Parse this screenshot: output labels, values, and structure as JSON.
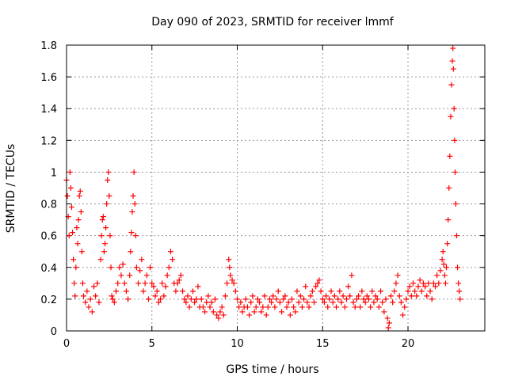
{
  "chart_data": {
    "type": "scatter",
    "title": "Day 090 of 2023, SRMTID for receiver lmmf",
    "xlabel": "GPS time / hours",
    "ylabel": "SRMTID / TECUs",
    "xlim": [
      0,
      24.5
    ],
    "ylim": [
      0,
      1.8
    ],
    "x_ticks": [
      0,
      5,
      10,
      15,
      20
    ],
    "x_tick_labels": [
      "0",
      "5",
      "10",
      "15",
      "20"
    ],
    "y_ticks": [
      0,
      0.2,
      0.4,
      0.6,
      0.8,
      1.0,
      1.2,
      1.4,
      1.6,
      1.8
    ],
    "y_tick_labels": [
      "0",
      "0.2",
      "0.4",
      "0.6",
      "0.8",
      "1",
      "1.2",
      "1.4",
      "1.6",
      "1.8"
    ],
    "grid": true,
    "marker": "+",
    "marker_color": "#ff0000",
    "series": [
      {
        "name": "SRMTID",
        "points": [
          [
            0.0,
            0.95
          ],
          [
            0.05,
            0.85
          ],
          [
            0.1,
            0.72
          ],
          [
            0.15,
            0.6
          ],
          [
            0.2,
            1.0
          ],
          [
            0.25,
            0.9
          ],
          [
            0.3,
            0.78
          ],
          [
            0.35,
            0.62
          ],
          [
            0.4,
            0.45
          ],
          [
            0.45,
            0.3
          ],
          [
            0.5,
            0.22
          ],
          [
            0.55,
            0.4
          ],
          [
            0.6,
            0.65
          ],
          [
            0.65,
            0.55
          ],
          [
            0.7,
            0.7
          ],
          [
            0.75,
            0.85
          ],
          [
            0.8,
            0.88
          ],
          [
            0.85,
            0.75
          ],
          [
            0.9,
            0.5
          ],
          [
            0.95,
            0.3
          ],
          [
            1.0,
            0.22
          ],
          [
            1.1,
            0.18
          ],
          [
            1.2,
            0.25
          ],
          [
            1.3,
            0.15
          ],
          [
            1.4,
            0.2
          ],
          [
            1.5,
            0.12
          ],
          [
            1.6,
            0.28
          ],
          [
            1.7,
            0.22
          ],
          [
            1.8,
            0.3
          ],
          [
            1.9,
            0.18
          ],
          [
            2.0,
            0.45
          ],
          [
            2.05,
            0.6
          ],
          [
            2.1,
            0.7
          ],
          [
            2.15,
            0.72
          ],
          [
            2.2,
            0.5
          ],
          [
            2.25,
            0.55
          ],
          [
            2.3,
            0.65
          ],
          [
            2.35,
            0.8
          ],
          [
            2.4,
            0.95
          ],
          [
            2.45,
            1.0
          ],
          [
            2.5,
            0.85
          ],
          [
            2.55,
            0.6
          ],
          [
            2.6,
            0.4
          ],
          [
            2.65,
            0.22
          ],
          [
            2.7,
            0.2
          ],
          [
            2.8,
            0.18
          ],
          [
            2.9,
            0.25
          ],
          [
            3.0,
            0.3
          ],
          [
            3.1,
            0.4
          ],
          [
            3.2,
            0.35
          ],
          [
            3.3,
            0.42
          ],
          [
            3.4,
            0.3
          ],
          [
            3.5,
            0.25
          ],
          [
            3.6,
            0.2
          ],
          [
            3.7,
            0.35
          ],
          [
            3.75,
            0.5
          ],
          [
            3.8,
            0.62
          ],
          [
            3.85,
            0.75
          ],
          [
            3.9,
            0.85
          ],
          [
            3.95,
            1.0
          ],
          [
            4.0,
            0.8
          ],
          [
            4.05,
            0.6
          ],
          [
            4.1,
            0.4
          ],
          [
            4.2,
            0.3
          ],
          [
            4.3,
            0.38
          ],
          [
            4.4,
            0.45
          ],
          [
            4.5,
            0.25
          ],
          [
            4.6,
            0.3
          ],
          [
            4.7,
            0.35
          ],
          [
            4.8,
            0.2
          ],
          [
            4.9,
            0.4
          ],
          [
            5.0,
            0.3
          ],
          [
            5.1,
            0.28
          ],
          [
            5.2,
            0.22
          ],
          [
            5.3,
            0.25
          ],
          [
            5.4,
            0.18
          ],
          [
            5.5,
            0.2
          ],
          [
            5.6,
            0.3
          ],
          [
            5.7,
            0.22
          ],
          [
            5.8,
            0.28
          ],
          [
            5.9,
            0.35
          ],
          [
            6.0,
            0.4
          ],
          [
            6.1,
            0.5
          ],
          [
            6.2,
            0.45
          ],
          [
            6.3,
            0.3
          ],
          [
            6.4,
            0.25
          ],
          [
            6.5,
            0.3
          ],
          [
            6.6,
            0.32
          ],
          [
            6.7,
            0.35
          ],
          [
            6.8,
            0.25
          ],
          [
            6.9,
            0.2
          ],
          [
            7.0,
            0.18
          ],
          [
            7.1,
            0.22
          ],
          [
            7.2,
            0.15
          ],
          [
            7.3,
            0.2
          ],
          [
            7.4,
            0.25
          ],
          [
            7.5,
            0.18
          ],
          [
            7.6,
            0.2
          ],
          [
            7.7,
            0.28
          ],
          [
            7.8,
            0.15
          ],
          [
            7.9,
            0.2
          ],
          [
            8.0,
            0.15
          ],
          [
            8.1,
            0.12
          ],
          [
            8.2,
            0.18
          ],
          [
            8.3,
            0.22
          ],
          [
            8.4,
            0.15
          ],
          [
            8.5,
            0.18
          ],
          [
            8.6,
            0.12
          ],
          [
            8.7,
            0.2
          ],
          [
            8.8,
            0.1
          ],
          [
            8.9,
            0.08
          ],
          [
            9.0,
            0.12
          ],
          [
            9.1,
            0.15
          ],
          [
            9.2,
            0.1
          ],
          [
            9.3,
            0.22
          ],
          [
            9.4,
            0.3
          ],
          [
            9.5,
            0.45
          ],
          [
            9.55,
            0.4
          ],
          [
            9.6,
            0.35
          ],
          [
            9.7,
            0.32
          ],
          [
            9.8,
            0.3
          ],
          [
            9.9,
            0.25
          ],
          [
            10.0,
            0.2
          ],
          [
            10.1,
            0.15
          ],
          [
            10.2,
            0.18
          ],
          [
            10.3,
            0.12
          ],
          [
            10.4,
            0.15
          ],
          [
            10.5,
            0.2
          ],
          [
            10.6,
            0.15
          ],
          [
            10.7,
            0.1
          ],
          [
            10.8,
            0.18
          ],
          [
            10.9,
            0.22
          ],
          [
            11.0,
            0.12
          ],
          [
            11.1,
            0.15
          ],
          [
            11.2,
            0.2
          ],
          [
            11.3,
            0.18
          ],
          [
            11.4,
            0.12
          ],
          [
            11.5,
            0.15
          ],
          [
            11.6,
            0.22
          ],
          [
            11.7,
            0.1
          ],
          [
            11.8,
            0.15
          ],
          [
            11.9,
            0.2
          ],
          [
            12.0,
            0.18
          ],
          [
            12.1,
            0.22
          ],
          [
            12.2,
            0.15
          ],
          [
            12.3,
            0.2
          ],
          [
            12.4,
            0.25
          ],
          [
            12.5,
            0.18
          ],
          [
            12.6,
            0.12
          ],
          [
            12.7,
            0.2
          ],
          [
            12.8,
            0.22
          ],
          [
            12.9,
            0.15
          ],
          [
            13.0,
            0.18
          ],
          [
            13.1,
            0.1
          ],
          [
            13.2,
            0.2
          ],
          [
            13.3,
            0.15
          ],
          [
            13.4,
            0.12
          ],
          [
            13.5,
            0.25
          ],
          [
            13.6,
            0.18
          ],
          [
            13.7,
            0.22
          ],
          [
            13.8,
            0.15
          ],
          [
            13.9,
            0.2
          ],
          [
            14.0,
            0.28
          ],
          [
            14.1,
            0.18
          ],
          [
            14.2,
            0.15
          ],
          [
            14.3,
            0.22
          ],
          [
            14.4,
            0.25
          ],
          [
            14.5,
            0.18
          ],
          [
            14.6,
            0.28
          ],
          [
            14.7,
            0.3
          ],
          [
            14.8,
            0.32
          ],
          [
            14.9,
            0.25
          ],
          [
            15.0,
            0.2
          ],
          [
            15.1,
            0.18
          ],
          [
            15.2,
            0.22
          ],
          [
            15.3,
            0.15
          ],
          [
            15.4,
            0.2
          ],
          [
            15.5,
            0.25
          ],
          [
            15.6,
            0.18
          ],
          [
            15.7,
            0.22
          ],
          [
            15.8,
            0.15
          ],
          [
            15.9,
            0.2
          ],
          [
            16.0,
            0.25
          ],
          [
            16.1,
            0.18
          ],
          [
            16.2,
            0.22
          ],
          [
            16.3,
            0.15
          ],
          [
            16.4,
            0.2
          ],
          [
            16.5,
            0.28
          ],
          [
            16.6,
            0.22
          ],
          [
            16.7,
            0.35
          ],
          [
            16.8,
            0.18
          ],
          [
            16.9,
            0.15
          ],
          [
            17.0,
            0.2
          ],
          [
            17.1,
            0.22
          ],
          [
            17.2,
            0.15
          ],
          [
            17.3,
            0.25
          ],
          [
            17.4,
            0.2
          ],
          [
            17.5,
            0.18
          ],
          [
            17.6,
            0.22
          ],
          [
            17.7,
            0.2
          ],
          [
            17.8,
            0.15
          ],
          [
            17.9,
            0.25
          ],
          [
            18.0,
            0.18
          ],
          [
            18.1,
            0.22
          ],
          [
            18.2,
            0.2
          ],
          [
            18.3,
            0.15
          ],
          [
            18.4,
            0.25
          ],
          [
            18.5,
            0.18
          ],
          [
            18.6,
            0.12
          ],
          [
            18.7,
            0.2
          ],
          [
            18.8,
            0.08
          ],
          [
            18.85,
            0.02
          ],
          [
            18.9,
            0.05
          ],
          [
            19.0,
            0.22
          ],
          [
            19.1,
            0.18
          ],
          [
            19.2,
            0.25
          ],
          [
            19.3,
            0.3
          ],
          [
            19.4,
            0.35
          ],
          [
            19.5,
            0.22
          ],
          [
            19.6,
            0.18
          ],
          [
            19.7,
            0.1
          ],
          [
            19.8,
            0.15
          ],
          [
            19.9,
            0.2
          ],
          [
            20.0,
            0.25
          ],
          [
            20.1,
            0.28
          ],
          [
            20.2,
            0.22
          ],
          [
            20.3,
            0.3
          ],
          [
            20.4,
            0.25
          ],
          [
            20.5,
            0.22
          ],
          [
            20.6,
            0.28
          ],
          [
            20.7,
            0.32
          ],
          [
            20.8,
            0.25
          ],
          [
            20.9,
            0.3
          ],
          [
            21.0,
            0.28
          ],
          [
            21.1,
            0.22
          ],
          [
            21.2,
            0.3
          ],
          [
            21.3,
            0.25
          ],
          [
            21.4,
            0.2
          ],
          [
            21.5,
            0.3
          ],
          [
            21.6,
            0.28
          ],
          [
            21.7,
            0.35
          ],
          [
            21.8,
            0.3
          ],
          [
            21.9,
            0.38
          ],
          [
            22.0,
            0.45
          ],
          [
            22.05,
            0.5
          ],
          [
            22.1,
            0.42
          ],
          [
            22.15,
            0.35
          ],
          [
            22.2,
            0.3
          ],
          [
            22.25,
            0.4
          ],
          [
            22.3,
            0.55
          ],
          [
            22.35,
            0.7
          ],
          [
            22.4,
            0.9
          ],
          [
            22.45,
            1.1
          ],
          [
            22.5,
            1.35
          ],
          [
            22.55,
            1.55
          ],
          [
            22.6,
            1.7
          ],
          [
            22.63,
            1.78
          ],
          [
            22.66,
            1.65
          ],
          [
            22.7,
            1.4
          ],
          [
            22.73,
            1.2
          ],
          [
            22.76,
            1.0
          ],
          [
            22.8,
            0.8
          ],
          [
            22.85,
            0.6
          ],
          [
            22.9,
            0.4
          ],
          [
            22.95,
            0.3
          ],
          [
            23.0,
            0.25
          ],
          [
            23.05,
            0.2
          ]
        ]
      }
    ]
  }
}
